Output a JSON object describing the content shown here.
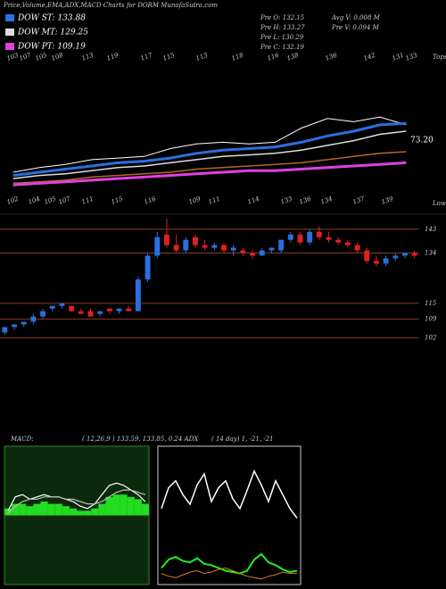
{
  "header": {
    "title": "Price,Volume,EMA,ADX,MACD Charts for DORM MunafaSutra.com",
    "stats": [
      "Pre  O: 132.15",
      "Pre  H: 133.27",
      "Pre  L: 130.29",
      "Pre  C: 132.19",
      "Avg V: 0.008  M",
      "Pre  V: 0.094  M"
    ]
  },
  "chart_data": [
    {
      "type": "line",
      "top_label": "Tops",
      "bottom_label": "Lows",
      "annotation": "73.20",
      "top_labels": [
        103,
        107,
        105,
        108,
        113,
        119,
        117,
        115,
        113,
        118,
        116,
        138,
        136,
        142,
        131,
        133
      ],
      "bottom_labels": [
        102,
        104,
        105,
        107,
        111,
        115,
        116,
        109,
        111,
        114,
        133,
        136,
        134,
        137,
        139
      ],
      "ylim": [
        81,
        177
      ],
      "series": [
        {
          "color": "#ffffff",
          "width": 1,
          "values": [
            103,
            106,
            108,
            111,
            112,
            113,
            118,
            121,
            122,
            121,
            122,
            131,
            137,
            135,
            138,
            133
          ]
        },
        {
          "name": "DOW ST: 133.88",
          "color": "#2a6fe0",
          "width": 3,
          "values": [
            101,
            103,
            105,
            107,
            109,
            110,
            112,
            115,
            117,
            118,
            119,
            122,
            126,
            129,
            133,
            134
          ]
        },
        {
          "name": "DOW MT: 129.25",
          "color": "#dddddd",
          "width": 1.5,
          "values": [
            99,
            101,
            102,
            104,
            106,
            107,
            109,
            111,
            113,
            114,
            115,
            117,
            120,
            123,
            127,
            129
          ]
        },
        {
          "color": "#b06a20",
          "width": 1.5,
          "values": [
            96,
            97,
            98,
            100,
            101,
            102,
            103,
            105,
            106,
            107,
            108,
            109,
            111,
            113,
            115,
            116
          ]
        },
        {
          "name": "DOW PT: 109.19",
          "color": "#e040e0",
          "width": 3,
          "values": [
            95,
            96,
            97,
            98,
            99,
            100,
            101,
            102,
            103,
            104,
            104,
            105,
            106,
            107,
            108,
            109
          ]
        }
      ]
    },
    {
      "type": "candlestick",
      "up_color": "#2a6fe0",
      "down_color": "#e02020",
      "grid_color": "#8b3a1a",
      "ylim": [
        66,
        147
      ],
      "yticks": [
        143,
        134,
        115,
        109,
        102
      ],
      "open": [
        104,
        106,
        107,
        108,
        110,
        113,
        114,
        114,
        112,
        112,
        111,
        113,
        112,
        113,
        112,
        124,
        133,
        141,
        137,
        135,
        140,
        137,
        136,
        137,
        135,
        135,
        134,
        133,
        135,
        135,
        139,
        141,
        138,
        142,
        140,
        139,
        138,
        137,
        135,
        131,
        130,
        132,
        133,
        134
      ],
      "high": [
        106,
        107,
        108,
        111,
        113,
        114,
        115,
        114,
        113,
        113,
        112,
        113,
        113,
        114,
        125,
        134,
        142,
        147,
        141,
        140,
        141,
        139,
        138,
        138,
        137,
        136,
        135,
        136,
        136,
        139,
        142,
        142,
        143,
        144,
        142,
        140,
        139,
        138,
        136,
        133,
        133,
        134,
        134,
        135
      ],
      "low": [
        103,
        105,
        106,
        107,
        109,
        112,
        113,
        112,
        111,
        110,
        110,
        111,
        111,
        112,
        112,
        123,
        132,
        136,
        134,
        134,
        136,
        135,
        135,
        134,
        133,
        133,
        132,
        133,
        134,
        134,
        138,
        137,
        137,
        139,
        138,
        137,
        136,
        134,
        130,
        129,
        129,
        131,
        132,
        132
      ],
      "close": [
        106,
        107,
        108,
        110,
        112,
        114,
        115,
        112,
        111,
        110,
        112,
        112,
        113,
        112,
        124,
        133,
        140,
        137,
        135,
        139,
        137,
        136,
        137,
        135,
        136,
        134,
        133,
        135,
        136,
        139,
        141,
        138,
        142,
        140,
        139,
        138,
        137,
        135,
        131,
        130,
        132,
        133,
        134,
        133
      ]
    },
    {
      "type": "macd",
      "title": "MACD:",
      "subtitle": "( 12,26,9 ) 133.59,  133.85,  0.24  ADX",
      "ylim": [
        -3,
        3
      ],
      "hist_color": "#22dd22",
      "histogram": [
        0.3,
        0.5,
        0.5,
        0.4,
        0.5,
        0.6,
        0.5,
        0.5,
        0.4,
        0.3,
        0.2,
        0.2,
        0.3,
        0.5,
        0.8,
        0.9,
        0.9,
        0.8,
        0.7,
        0.5
      ],
      "series": [
        {
          "color": "#ffffff",
          "values": [
            0.2,
            0.8,
            0.9,
            0.7,
            0.8,
            0.9,
            0.8,
            0.8,
            0.7,
            0.6,
            0.4,
            0.3,
            0.5,
            0.9,
            1.3,
            1.4,
            1.3,
            1.1,
            0.9,
            0.6
          ]
        },
        {
          "color": "#bbbbbb",
          "values": [
            0.1,
            0.4,
            0.6,
            0.7,
            0.7,
            0.8,
            0.8,
            0.8,
            0.7,
            0.7,
            0.6,
            0.5,
            0.5,
            0.6,
            0.8,
            1.0,
            1.1,
            1.1,
            1.0,
            0.9
          ]
        }
      ]
    },
    {
      "type": "line",
      "title": "( 14  day) 1,  -21,  -21",
      "ylim": [
        0,
        100
      ],
      "series": [
        {
          "color": "#ffffff",
          "width": 1.5,
          "values": [
            55,
            70,
            75,
            65,
            58,
            72,
            80,
            60,
            70,
            75,
            62,
            55,
            68,
            82,
            72,
            60,
            75,
            65,
            55,
            48
          ]
        },
        {
          "color": "#22ee22",
          "width": 2,
          "values": [
            12,
            18,
            20,
            17,
            16,
            19,
            15,
            14,
            12,
            10,
            9,
            8,
            10,
            18,
            22,
            16,
            14,
            11,
            9,
            10
          ]
        },
        {
          "color": "#d87a20",
          "width": 1,
          "values": [
            8,
            6,
            5,
            7,
            9,
            10,
            8,
            9,
            11,
            12,
            10,
            8,
            6,
            5,
            4,
            6,
            7,
            9,
            8,
            8
          ]
        }
      ]
    }
  ]
}
